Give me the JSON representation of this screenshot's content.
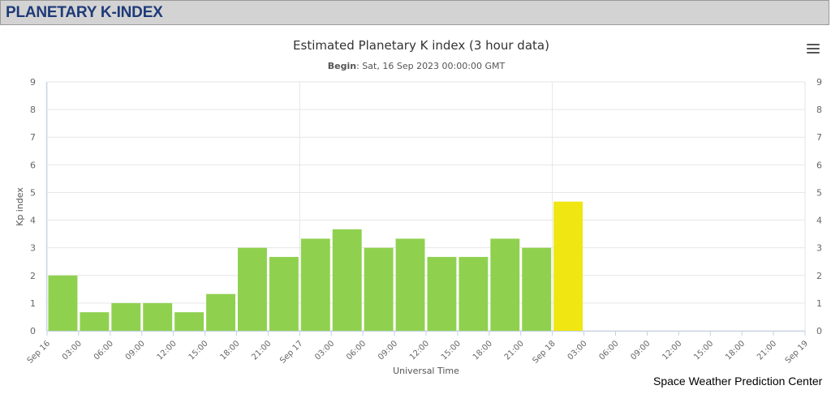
{
  "header": {
    "title": "PLANETARY K-INDEX"
  },
  "footer": {
    "credit": "Space Weather Prediction Center"
  },
  "icons": {
    "menu": "hamburger-menu-icon"
  },
  "colors": {
    "bar_default": "#8fd14f",
    "bar_highlight": "#f0e612",
    "header_bg": "#d3d3d3",
    "header_text": "#1e3a78"
  },
  "chart_data": {
    "type": "bar",
    "title": "Estimated Planetary K index (3 hour data)",
    "subtitle_label": "Begin",
    "subtitle_value": ": Sat, 16 Sep 2023 00:00:00 GMT",
    "xlabel": "Universal Time",
    "ylabel": "Kp index",
    "ylim": [
      0,
      9
    ],
    "yticks": [
      "0",
      "1",
      "2",
      "3",
      "4",
      "5",
      "6",
      "7",
      "8",
      "9"
    ],
    "xticks": [
      "Sep 16",
      "03:00",
      "06:00",
      "09:00",
      "12:00",
      "15:00",
      "18:00",
      "21:00",
      "Sep 17",
      "03:00",
      "06:00",
      "09:00",
      "12:00",
      "15:00",
      "18:00",
      "21:00",
      "Sep 18",
      "03:00",
      "06:00",
      "09:00",
      "12:00",
      "15:00",
      "18:00",
      "21:00",
      "Sep 19"
    ],
    "grid": true,
    "values": [
      2.0,
      0.67,
      1.0,
      1.0,
      0.67,
      1.33,
      3.0,
      2.67,
      3.33,
      3.67,
      3.0,
      3.33,
      2.67,
      2.67,
      3.33,
      3.0,
      4.67
    ],
    "highlight_index": 16
  }
}
